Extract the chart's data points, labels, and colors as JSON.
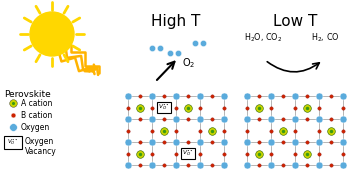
{
  "bg_color": "#ffffff",
  "blue_atom": "#5aabdc",
  "green_atom_outer": "#c8d400",
  "green_atom_inner": "#3a9a10",
  "red_atom": "#cc2200",
  "grid_color": "#999999",
  "sun_color": "#FFD700",
  "ray_color": "#FFB300",
  "high_t_label": "High T",
  "low_t_label": "Low T",
  "perovskite_label": "Perovskite",
  "o2_label": "O$_2$",
  "h2o_co2_label": "H$_2$O, CO$_2$",
  "h2_co_label": "H$_2$, CO"
}
